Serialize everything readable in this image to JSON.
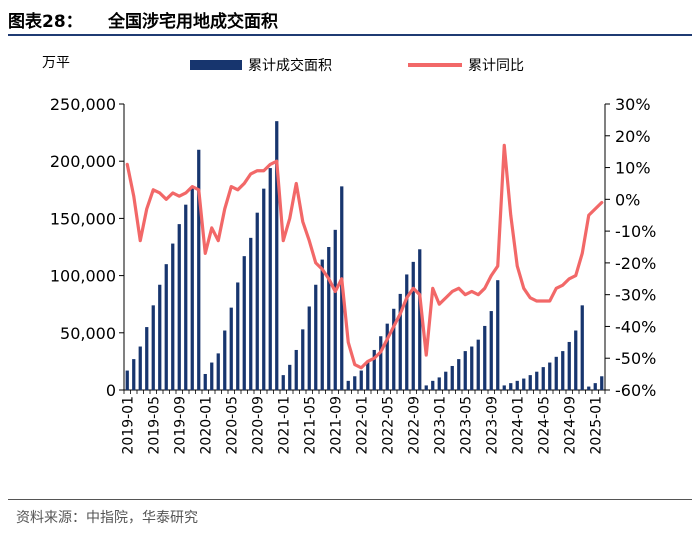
{
  "header": {
    "figure_no": "图表28：",
    "title": "全国涉宅用地成交面积"
  },
  "source": "资料来源：中指院，华泰研究",
  "colors": {
    "bar": "#17356e",
    "line": "#f26868",
    "rule": "#1f3b73"
  },
  "chart_data": {
    "type": "bar+line",
    "title": "全国涉宅用地成交面积",
    "unit_left": "万平",
    "y_left": {
      "min": 0,
      "max": 250000,
      "ticks": [
        "0",
        "50,000",
        "100,000",
        "150,000",
        "200,000",
        "250,000"
      ]
    },
    "y_right": {
      "min": -60,
      "max": 30,
      "ticks": [
        "-60%",
        "-50%",
        "-40%",
        "-30%",
        "-20%",
        "-10%",
        "0%",
        "10%",
        "20%",
        "30%"
      ]
    },
    "x_tick_labels": [
      "2019-01",
      "2019-05",
      "2019-09",
      "2020-01",
      "2020-05",
      "2020-09",
      "2021-01",
      "2021-05",
      "2021-09",
      "2022-01",
      "2022-05",
      "2022-09",
      "2023-01",
      "2023-05",
      "2023-09",
      "2024-01",
      "2024-05",
      "2024-09",
      "2025-01"
    ],
    "legend": {
      "bar": "累计成交面积",
      "line": "累计同比"
    },
    "bar_values": [
      17000,
      27000,
      38000,
      55000,
      74000,
      92000,
      110000,
      128000,
      145000,
      162000,
      178000,
      210000,
      14000,
      24000,
      32000,
      52000,
      72000,
      94000,
      117000,
      133000,
      155000,
      176000,
      194000,
      235000,
      13000,
      22000,
      35000,
      53000,
      73000,
      92000,
      114000,
      125000,
      140000,
      178000,
      8000,
      12000,
      17000,
      25000,
      35000,
      47000,
      58000,
      71000,
      84000,
      101000,
      112000,
      123000,
      4000,
      8000,
      11000,
      16000,
      21000,
      27000,
      34000,
      38000,
      44000,
      56000,
      69000,
      96000,
      4000,
      6000,
      8000,
      10000,
      13000,
      16000,
      20000,
      24000,
      29000,
      34000,
      42000,
      52000,
      74000,
      3000,
      6000,
      12000
    ],
    "line_values": [
      11,
      1,
      -13,
      -3,
      3,
      2,
      0,
      2,
      1,
      2,
      4,
      3,
      -17,
      -9,
      -13,
      -3,
      4,
      3,
      5,
      8,
      9,
      9,
      11,
      12,
      -13,
      -6,
      5,
      -7,
      -13,
      -20,
      -22,
      -25,
      -29,
      -25,
      -45,
      -52,
      -53,
      -51,
      -50,
      -48,
      -44,
      -40,
      -36,
      -31,
      -28,
      -30,
      -49,
      -28,
      -33,
      -31,
      -29,
      -28,
      -30,
      -29,
      -30,
      -28,
      -24,
      -21,
      17,
      -5,
      -21,
      -28,
      -31,
      -32,
      -32,
      -32,
      -28,
      -27,
      -25,
      -24,
      -17,
      -5,
      -3,
      -1
    ]
  }
}
